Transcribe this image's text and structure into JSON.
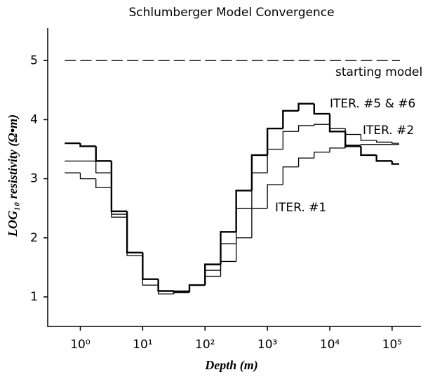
{
  "chart_data": {
    "type": "step",
    "title": "Schlumberger Model Convergence",
    "xlabel": "Depth (m)",
    "ylabel": "LOG₁₀ resistivity (Ω•m)",
    "x": [
      0.562,
      1,
      1.78,
      3.16,
      5.62,
      10,
      17.8,
      31.6,
      56.2,
      100,
      178,
      316,
      562,
      1000,
      1778,
      3162,
      5623,
      10000,
      17783,
      31623,
      56234,
      100000,
      130000
    ],
    "series": [
      {
        "name": "starting model",
        "color": "#000000",
        "dashed": true,
        "values": [
          5,
          5,
          5,
          5,
          5,
          5,
          5,
          5,
          5,
          5,
          5,
          5,
          5,
          5,
          5,
          5,
          5,
          5,
          5,
          5,
          5,
          5,
          5
        ]
      },
      {
        "name": "ITER. #5 & #6",
        "color": "#000000",
        "dashed": false,
        "values": [
          3.6,
          3.55,
          3.3,
          2.45,
          1.75,
          1.3,
          1.1,
          1.08,
          1.2,
          1.55,
          2.1,
          2.8,
          3.4,
          3.85,
          4.15,
          4.27,
          4.1,
          3.8,
          3.55,
          3.4,
          3.3,
          3.25,
          3.25
        ]
      },
      {
        "name": "ITER. #2",
        "color": "#000000",
        "dashed": false,
        "values": [
          3.3,
          3.3,
          3.1,
          2.4,
          1.75,
          1.3,
          1.1,
          1.1,
          1.2,
          1.45,
          1.9,
          2.5,
          3.1,
          3.5,
          3.8,
          3.9,
          3.92,
          3.85,
          3.75,
          3.65,
          3.62,
          3.6,
          3.6
        ]
      },
      {
        "name": "ITER. #1",
        "color": "#000000",
        "dashed": false,
        "values": [
          3.1,
          3.0,
          2.85,
          2.35,
          1.7,
          1.2,
          1.05,
          1.1,
          1.2,
          1.35,
          1.6,
          2.0,
          2.5,
          2.9,
          3.2,
          3.35,
          3.45,
          3.52,
          3.57,
          3.58,
          3.58,
          3.58,
          3.58
        ]
      }
    ],
    "xlog": true,
    "xlim": [
      0.3,
      290000
    ],
    "xticks": [
      {
        "value": 1,
        "label": "10⁰"
      },
      {
        "value": 10,
        "label": "10¹"
      },
      {
        "value": 100,
        "label": "10²"
      },
      {
        "value": 1000,
        "label": "10³"
      },
      {
        "value": 10000,
        "label": "10⁴"
      },
      {
        "value": 100000,
        "label": "10⁵"
      }
    ],
    "ylim": [
      0.5,
      5.55
    ],
    "yticks": [
      1,
      2,
      3,
      4,
      5
    ],
    "grid": false
  }
}
